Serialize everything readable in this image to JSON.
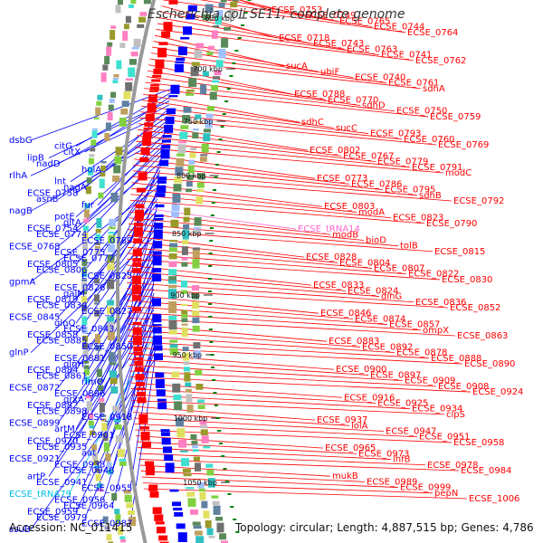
{
  "title": "Escherichia coli SE11, complete genome",
  "accession": "Accession: NC_011415",
  "topology": "Topology: circular; Length: 4,887,515 bp; Genes: 4,786",
  "colors": {
    "forward": "#ff0000",
    "reverse": "#0000ff",
    "rna": "#00c0e0",
    "rna_pink": "#ff66cc",
    "tick": "#008000",
    "backbone": "#999999"
  },
  "scale_labels": [
    "650 kbp",
    "700 kbp",
    "750 kbp",
    "800 kbp",
    "850 kbp",
    "900 kbp",
    "950 kbp",
    "1000 kbp",
    "1050 kbp"
  ],
  "left_genes": [
    "dsbG",
    "citG",
    "citX",
    "lipB",
    "nadD",
    "holA",
    "rlhA",
    "lnt",
    "nagA",
    "ECSE_0758",
    "asnB",
    "fur",
    "nagB",
    "potE",
    "gltA",
    "ECSE_0754",
    "ECSE_0774",
    "ECSE_0789",
    "ECSE_0768",
    "ECSE_0775",
    "ECSE_0777",
    "ECSE_0805",
    "ECSE_0806",
    "ECSE_0825",
    "gpmA",
    "ECSE_0826",
    "galM",
    "ECSE_0819",
    "ECSE_0834",
    "ECSE_0827",
    "ECSE_0845",
    "glnQ",
    "ECSE_0843",
    "ECSE_0858",
    "ECSE_0885",
    "ECSE_0850",
    "glnP",
    "ECSE_0881",
    "glnH",
    "ECSE_0884",
    "ECSE_0861",
    "rimO",
    "ECSE_0872",
    "ECSE_0896",
    "grxA",
    "ECSE_0882",
    "ECSE_0898",
    "ECSE_0918",
    "ECSE_0899",
    "artM",
    "ECSE_0901",
    "ECSE_0920",
    "ECSE_0935",
    "aat",
    "ECSE_0921",
    "ECSE_0938",
    "ECSE_0946",
    "artP",
    "ECSE_0941",
    "ECSE_0955",
    "ECSE_tRNA79",
    "ECSE_0956",
    "ECSE_0964",
    "ECSE_0959",
    "ECSE_0979",
    "ECSE_0987",
    "ssuB"
  ],
  "right_genes": [
    "ECSE_0753",
    "ECSE_0749",
    "ECSE_0765",
    "ECSE_0744",
    "ECSE_0764",
    "ECSE_0718",
    "ECSE_0743",
    "ECSE_0763",
    "ECSE_0741",
    "ECSE_0762",
    "sucA",
    "ubiF",
    "ECSE_0740",
    "ECSE_0761",
    "sdhA",
    "ECSE_0788",
    "ECSE_0770",
    "sdhD",
    "ECSE_0750",
    "ECSE_0759",
    "sdhC",
    "sucC",
    "ECSE_0793",
    "ECSE_0760",
    "ECSE_0769",
    "ECSE_0802",
    "ECSE_0767",
    "ECSE_0779",
    "ECSE_0791",
    "modC",
    "ECSE_0773",
    "ECSE_0786",
    "ECSE_0795",
    "sdhB",
    "ECSE_0792",
    "ECSE_0803",
    "modA",
    "ECSE_0823",
    "ECSE_0790",
    "ECSE_tRNA14",
    "modB",
    "bioD",
    "tolB",
    "ECSE_0815",
    "ECSE_0828",
    "ECSE_0804",
    "ECSE_0807",
    "ECSE_0822",
    "ECSE_0830",
    "ECSE_0833",
    "ECSE_0824",
    "dinG",
    "ECSE_0836",
    "ECSE_0852",
    "ECSE_0846",
    "ECSE_0874",
    "ECSE_0857",
    "ompX",
    "ECSE_0863",
    "ECSE_0883",
    "ECSE_0892",
    "ECSE_0878",
    "ECSE_0888",
    "ECSE_0890",
    "ECSE_0900",
    "ECSE_0897",
    "ECSE_0909",
    "ECSE_0908",
    "ECSE_0924",
    "ECSE_0916",
    "ECSE_0925",
    "ECSE_0934",
    "clpS",
    "ECSE_0937",
    "lolA",
    "ECSE_0947",
    "ECSE_0951",
    "ECSE_0958",
    "ECSE_0965",
    "ECSE_0973",
    "ihfB",
    "ECSE_0978",
    "ECSE_0984",
    "mukB",
    "ECSE_0989",
    "ECSE_0999",
    "pepN",
    "ECSE_1006"
  ]
}
